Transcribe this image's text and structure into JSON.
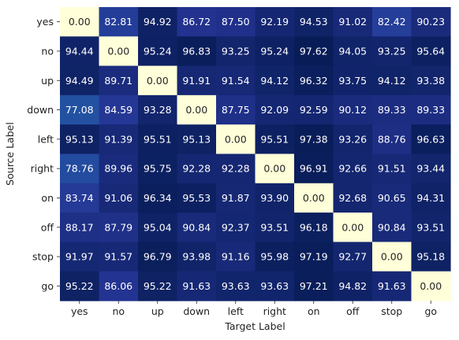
{
  "chart_data": {
    "type": "heatmap",
    "xlabel": "Target Label",
    "ylabel": "Source Label",
    "x_categories": [
      "yes",
      "no",
      "up",
      "down",
      "left",
      "right",
      "on",
      "off",
      "stop",
      "go"
    ],
    "y_categories": [
      "yes",
      "no",
      "up",
      "down",
      "left",
      "right",
      "on",
      "off",
      "stop",
      "go"
    ],
    "values": [
      [
        0.0,
        82.81,
        94.92,
        86.72,
        87.5,
        92.19,
        94.53,
        91.02,
        82.42,
        90.23
      ],
      [
        94.44,
        0.0,
        95.24,
        96.83,
        93.25,
        95.24,
        97.62,
        94.05,
        93.25,
        95.64
      ],
      [
        94.49,
        89.71,
        0.0,
        91.91,
        91.54,
        94.12,
        96.32,
        93.75,
        94.12,
        93.38
      ],
      [
        77.08,
        84.59,
        93.28,
        0.0,
        87.75,
        92.09,
        92.59,
        90.12,
        89.33,
        89.33
      ],
      [
        95.13,
        91.39,
        95.51,
        95.13,
        0.0,
        95.51,
        97.38,
        93.26,
        88.76,
        96.63
      ],
      [
        78.76,
        89.96,
        95.75,
        92.28,
        92.28,
        0.0,
        96.91,
        92.66,
        91.51,
        93.44
      ],
      [
        83.74,
        91.06,
        96.34,
        95.53,
        91.87,
        93.9,
        0.0,
        92.68,
        90.65,
        94.31
      ],
      [
        88.17,
        87.79,
        95.04,
        90.84,
        92.37,
        93.51,
        96.18,
        0.0,
        90.84,
        93.51
      ],
      [
        91.97,
        91.57,
        96.79,
        93.98,
        91.16,
        95.98,
        97.19,
        92.77,
        0.0,
        95.18
      ],
      [
        95.22,
        86.06,
        95.22,
        91.63,
        93.63,
        93.63,
        97.21,
        94.82,
        91.63,
        0.0
      ]
    ],
    "value_format": "2 decimals",
    "colormap": "YlGnBu",
    "colorbar": false,
    "grid": false
  }
}
